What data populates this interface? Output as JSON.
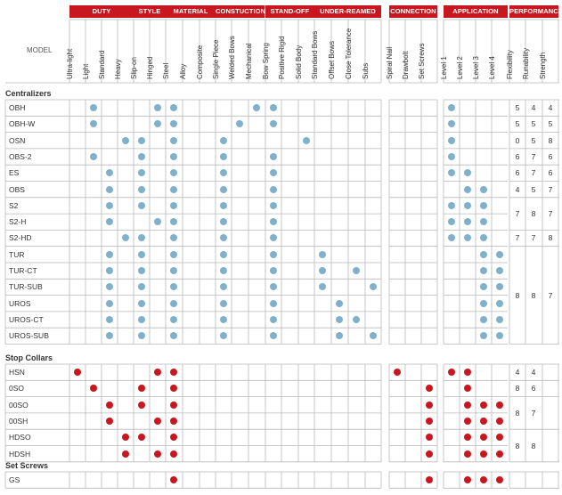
{
  "groups": [
    {
      "label": "DUTY",
      "start": 0,
      "span": 4
    },
    {
      "label": "STYLE",
      "start": 4,
      "span": 2
    },
    {
      "label": "MATERIAL",
      "start": 6,
      "span": 3
    },
    {
      "label": "CONSTUCTION",
      "start": 9,
      "span": 3
    },
    {
      "label": "STAND-OFF",
      "start": 12,
      "span": 3
    },
    {
      "label": "UNDER-REAMED",
      "start": 15,
      "span": 4
    },
    {
      "label": "CONNECTION",
      "start": 19,
      "span": 3
    },
    {
      "label": "APPLICATION",
      "start": 22,
      "span": 4
    },
    {
      "label": "PERFORMANCE",
      "start": 26,
      "span": 3
    }
  ],
  "model_header": "MODEL",
  "columns": [
    "Ultra-light",
    "Light",
    "Standard",
    "Heavy",
    "Slip-on",
    "Hinged",
    "Steel",
    "Alloy",
    "Composite",
    "Single Piece",
    "Welded Bows",
    "Mechanical",
    "Bow Spring",
    "Positive Rigid",
    "Solid Body",
    "Standard Bows",
    "Offset Bows",
    "Close Tolerance",
    "Subs",
    "Spiral Nail",
    "Drawbolt",
    "Set Screws",
    "Level 1",
    "Level 2",
    "Level 3",
    "Level 4",
    "Flexibility",
    "Runability",
    "Strength"
  ],
  "colors": {
    "header_red": "#c8171e",
    "dot_blue": "#7fb0cc",
    "dot_red": "#c8171e",
    "grid": "#b9b9b9"
  },
  "sections": [
    {
      "title": "Centralizers",
      "dot_color": "blue",
      "rows": [
        {
          "name": "OBH",
          "dots": [
            1,
            5,
            6,
            11,
            12,
            22
          ],
          "perf": [
            "5",
            "4",
            "4"
          ]
        },
        {
          "name": "OBH-W",
          "dots": [
            1,
            5,
            6,
            10,
            12,
            22
          ],
          "perf": [
            "5",
            "5",
            "5"
          ]
        },
        {
          "name": "OSN",
          "dots": [
            3,
            4,
            6,
            9,
            14,
            22
          ],
          "perf": [
            "0",
            "5",
            "8"
          ]
        },
        {
          "name": "OBS-2",
          "dots": [
            1,
            4,
            6,
            9,
            12,
            22
          ],
          "perf": [
            "6",
            "7",
            "6"
          ]
        },
        {
          "name": "ES",
          "dots": [
            2,
            4,
            6,
            9,
            12,
            22,
            23
          ],
          "perf": [
            "6",
            "7",
            "6"
          ]
        },
        {
          "name": "OBS",
          "dots": [
            2,
            4,
            6,
            9,
            12,
            23,
            24
          ],
          "perf": [
            "4",
            "5",
            "7"
          ]
        },
        {
          "name": "S2",
          "dots": [
            2,
            4,
            6,
            9,
            12,
            22,
            23,
            24
          ],
          "perf": null
        },
        {
          "name": "S2-H",
          "dots": [
            2,
            5,
            6,
            9,
            12,
            22,
            23,
            24
          ],
          "perf": null
        },
        {
          "name": "S2-HD",
          "dots": [
            3,
            4,
            6,
            9,
            12,
            22,
            23,
            24
          ],
          "perf": [
            "7",
            "7",
            "8"
          ]
        },
        {
          "name": "TUR",
          "dots": [
            2,
            4,
            6,
            9,
            12,
            15,
            24,
            25
          ],
          "perf": null
        },
        {
          "name": "TUR-CT",
          "dots": [
            2,
            4,
            6,
            9,
            12,
            15,
            17,
            24,
            25
          ],
          "perf": null
        },
        {
          "name": "TUR-SUB",
          "dots": [
            2,
            4,
            6,
            9,
            12,
            15,
            18,
            24,
            25
          ],
          "perf": null
        },
        {
          "name": "UROS",
          "dots": [
            2,
            4,
            6,
            9,
            12,
            16,
            24,
            25
          ],
          "perf": null
        },
        {
          "name": "UROS-CT",
          "dots": [
            2,
            4,
            6,
            9,
            12,
            16,
            17,
            24,
            25
          ],
          "perf": null
        },
        {
          "name": "UROS-SUB",
          "dots": [
            2,
            4,
            6,
            9,
            12,
            16,
            18,
            24,
            25
          ],
          "perf": null
        }
      ],
      "merged_perf": [
        {
          "rows": [
            6,
            7
          ],
          "vals": [
            "7",
            "8",
            "7"
          ]
        },
        {
          "rows": [
            9,
            14
          ],
          "vals": [
            "8",
            "8",
            "7"
          ]
        }
      ]
    },
    {
      "title": "Stop Collars",
      "dot_color": "red",
      "rows": [
        {
          "name": "HSN",
          "dots": [
            0,
            5,
            6,
            19,
            22,
            23
          ],
          "perf": [
            "4",
            "4",
            ""
          ]
        },
        {
          "name": "0SO",
          "dots": [
            1,
            4,
            6,
            21,
            23
          ],
          "perf": [
            "8",
            "6",
            ""
          ]
        },
        {
          "name": "00SO",
          "dots": [
            2,
            4,
            6,
            21,
            23,
            24,
            25
          ],
          "perf": null
        },
        {
          "name": "00SH",
          "dots": [
            2,
            5,
            6,
            21,
            23,
            24,
            25
          ],
          "perf": null
        },
        {
          "name": "HDSO",
          "dots": [
            3,
            4,
            6,
            21,
            23,
            24,
            25
          ],
          "perf": null
        },
        {
          "name": "HDSH",
          "dots": [
            3,
            5,
            6,
            21,
            23,
            24,
            25
          ],
          "perf": null
        }
      ],
      "merged_perf": [
        {
          "rows": [
            2,
            3
          ],
          "vals": [
            "8",
            "7",
            ""
          ]
        },
        {
          "rows": [
            4,
            5
          ],
          "vals": [
            "8",
            "8",
            ""
          ]
        }
      ]
    },
    {
      "title": "Set Screws",
      "dot_color": "red",
      "rows": [
        {
          "name": "GS",
          "dots": [
            6,
            21,
            23,
            24,
            25
          ],
          "perf": null
        }
      ],
      "merged_perf": []
    }
  ]
}
